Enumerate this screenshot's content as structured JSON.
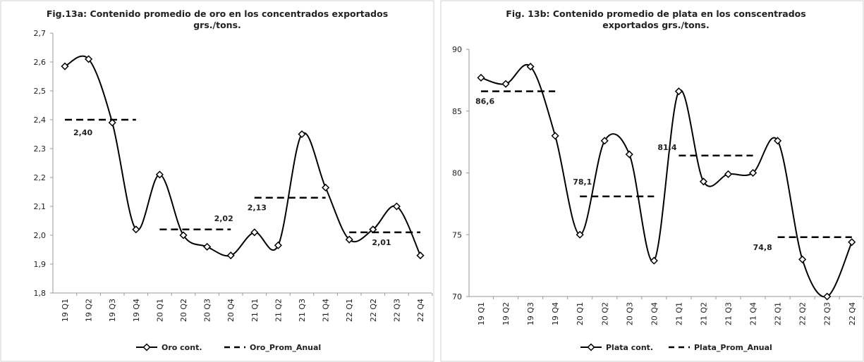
{
  "chart_data": [
    {
      "type": "line",
      "title": [
        "Fig.13a: Contenido promedio de oro en los concentrados exportados",
        "grs./tons."
      ],
      "categories": [
        "19 Q1",
        "19 Q2",
        "19 Q3",
        "19 Q4",
        "20 Q1",
        "20 Q2",
        "20 Q3",
        "20 Q4",
        "21 Q1",
        "21 Q2",
        "21 Q3",
        "21 Q4",
        "22 Q1",
        "22 Q2",
        "22 Q3",
        "22 Q4"
      ],
      "ylim": [
        1.8,
        2.7
      ],
      "yticks": [
        {
          "value": 1.8,
          "label": "1,8"
        },
        {
          "value": 1.9,
          "label": "1,9"
        },
        {
          "value": 2.0,
          "label": "2,0"
        },
        {
          "value": 2.1,
          "label": "2,1"
        },
        {
          "value": 2.2,
          "label": "2,2"
        },
        {
          "value": 2.3,
          "label": "2,3"
        },
        {
          "value": 2.4,
          "label": "2,4"
        },
        {
          "value": 2.5,
          "label": "2,5"
        },
        {
          "value": 2.6,
          "label": "2,6"
        },
        {
          "value": 2.7,
          "label": "2,7"
        }
      ],
      "series": [
        {
          "name": "Oro cont.",
          "color": "#000000",
          "style": "smooth-diamond",
          "values": [
            2.585,
            2.61,
            2.39,
            2.02,
            2.21,
            2.0,
            1.96,
            1.93,
            2.01,
            1.965,
            2.35,
            2.165,
            1.985,
            2.02,
            2.1,
            1.93
          ]
        },
        {
          "name": "Oro_Prom_Anual",
          "color": "#000000",
          "style": "dashed",
          "values": [
            2.4,
            2.4,
            2.4,
            2.4,
            2.02,
            2.02,
            2.02,
            2.02,
            2.13,
            2.13,
            2.13,
            2.13,
            2.01,
            2.01,
            2.01,
            2.01
          ],
          "value_labels": [
            "2,40",
            null,
            null,
            null,
            null,
            null,
            "2,02",
            null,
            "2,13",
            null,
            null,
            null,
            null,
            null,
            "2,01",
            null
          ]
        }
      ]
    },
    {
      "type": "line",
      "title": [
        "Fig. 13b: Contenido promedio de plata en los conscentrados",
        "exportados grs./tons."
      ],
      "categories": [
        "19 Q1",
        "19 Q2",
        "19 Q3",
        "19 Q4",
        "20 Q1",
        "20 Q2",
        "20 Q3",
        "20 Q4",
        "21 Q1",
        "21 Q2",
        "21 Q3",
        "21 Q4",
        "22 Q1",
        "22 Q2",
        "22 Q3",
        "22 Q4"
      ],
      "ylim": [
        70,
        90
      ],
      "yticks": [
        70,
        75,
        80,
        85,
        90
      ],
      "series": [
        {
          "name": "Plata cont.",
          "color": "#000000",
          "style": "smooth-diamond",
          "values": [
            87.7,
            87.2,
            88.6,
            83.0,
            75.0,
            82.6,
            81.5,
            72.9,
            86.6,
            79.3,
            79.9,
            80.0,
            82.6,
            73.0,
            70.0,
            74.4
          ]
        },
        {
          "name": "Plata_Prom_Anual",
          "color": "#000000",
          "style": "dashed",
          "values": [
            86.6,
            86.6,
            86.6,
            86.6,
            78.1,
            78.1,
            78.1,
            78.1,
            81.4,
            81.4,
            81.4,
            81.4,
            74.8,
            74.8,
            74.8,
            74.8
          ],
          "value_labels": [
            "86,6",
            null,
            null,
            null,
            "78,1",
            null,
            null,
            null,
            "81,4",
            null,
            null,
            null,
            "74,8",
            null,
            null,
            null
          ]
        }
      ]
    }
  ]
}
